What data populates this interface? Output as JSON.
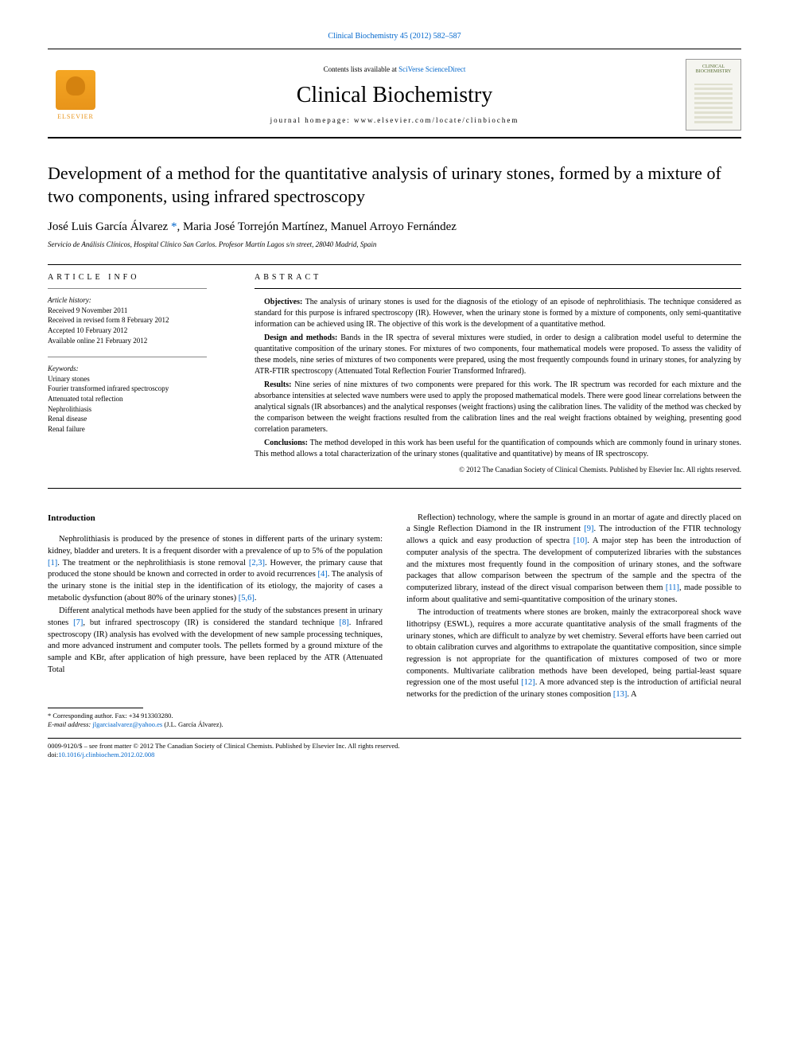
{
  "journal_ref": "Clinical Biochemistry 45 (2012) 582–587",
  "header": {
    "contents_prefix": "Contents lists available at ",
    "contents_link": "SciVerse ScienceDirect",
    "journal_name": "Clinical Biochemistry",
    "homepage_prefix": "journal homepage: ",
    "homepage_url": "www.elsevier.com/locate/clinbiochem",
    "elsevier_label": "ELSEVIER",
    "cover_label": "CLINICAL BIOCHEMISTRY"
  },
  "title": "Development of a method for the quantitative analysis of urinary stones, formed by a mixture of two components, using infrared spectroscopy",
  "authors": {
    "a1": "José Luis García Álvarez ",
    "corr_marker": "*",
    "sep1": ", ",
    "a2": "Maria José Torrejón Martínez",
    "sep2": ", ",
    "a3": "Manuel Arroyo Fernández"
  },
  "affiliation": "Servicio de Análisis Clínicos, Hospital Clínico San Carlos. Profesor Martín Lagos s/n street, 28040 Madrid, Spain",
  "article_info": {
    "heading": "article info",
    "history_label": "Article history:",
    "received": "Received 9 November 2011",
    "revised": "Received in revised form 8 February 2012",
    "accepted": "Accepted 10 February 2012",
    "online": "Available online 21 February 2012",
    "keywords_label": "Keywords:",
    "kw1": "Urinary stones",
    "kw2": "Fourier transformed infrared spectroscopy",
    "kw3": "Attenuated total reflection",
    "kw4": "Nephrolithiasis",
    "kw5": "Renal disease",
    "kw6": "Renal failure"
  },
  "abstract": {
    "heading": "abstract",
    "p1_label": "Objectives:",
    "p1": " The analysis of urinary stones is used for the diagnosis of the etiology of an episode of nephrolithiasis. The technique considered as standard for this purpose is infrared spectroscopy (IR). However, when the urinary stone is formed by a mixture of components, only semi-quantitative information can be achieved using IR. The objective of this work is the development of a quantitative method.",
    "p2_label": "Design and methods:",
    "p2": " Bands in the IR spectra of several mixtures were studied, in order to design a calibration model useful to determine the quantitative composition of the urinary stones. For mixtures of two components, four mathematical models were proposed. To assess the validity of these models, nine series of mixtures of two components were prepared, using the most frequently compounds found in urinary stones, for analyzing by ATR-FTIR spectroscopy (Attenuated Total Reflection Fourier Transformed Infrared).",
    "p3_label": "Results:",
    "p3": " Nine series of nine mixtures of two components were prepared for this work. The IR spectrum was recorded for each mixture and the absorbance intensities at selected wave numbers were used to apply the proposed mathematical models. There were good linear correlations between the analytical signals (IR absorbances) and the analytical responses (weight fractions) using the calibration lines. The validity of the method was checked by the comparison between the weight fractions resulted from the calibration lines and the real weight fractions obtained by weighing, presenting good correlation parameters.",
    "p4_label": "Conclusions:",
    "p4": " The method developed in this work has been useful for the quantification of compounds which are commonly found in urinary stones. This method allows a total characterization of the urinary stones (qualitative and quantitative) by means of IR spectroscopy.",
    "copyright": "© 2012 The Canadian Society of Clinical Chemists. Published by Elsevier Inc. All rights reserved."
  },
  "intro": {
    "heading": "Introduction",
    "col1_p1a": "Nephrolithiasis is produced by the presence of stones in different parts of the urinary system: kidney, bladder and ureters. It is a frequent disorder with a prevalence of up to 5% of the population ",
    "ref1": "[1]",
    "col1_p1b": ". The treatment or the nephrolithiasis is stone removal ",
    "ref23": "[2,3]",
    "col1_p1c": ". However, the primary cause that produced the stone should be known and corrected in order to avoid recurrences ",
    "ref4": "[4]",
    "col1_p1d": ". The analysis of the urinary stone is the initial step in the identification of its etiology, the majority of cases a metabolic dysfunction (about 80% of the urinary stones) ",
    "ref56": "[5,6]",
    "col1_p1e": ".",
    "col1_p2a": "Different analytical methods have been applied for the study of the substances present in urinary stones ",
    "ref7": "[7]",
    "col1_p2b": ", but infrared spectroscopy (IR) is considered the standard technique ",
    "ref8": "[8]",
    "col1_p2c": ". Infrared spectroscopy (IR) analysis has evolved with the development of new sample processing techniques, and more advanced instrument and computer tools. The pellets formed by a ground mixture of the sample and KBr, after application of high pressure, have been replaced by the ATR (Attenuated Total",
    "col2_p1a": "Reflection) technology, where the sample is ground in an mortar of agate and directly placed on a Single Reflection Diamond in the IR instrument ",
    "ref9": "[9]",
    "col2_p1b": ". The introduction of the FTIR technology allows a quick and easy production of spectra ",
    "ref10": "[10]",
    "col2_p1c": ". A major step has been the introduction of computer analysis of the spectra. The development of computerized libraries with the substances and the mixtures most frequently found in the composition of urinary stones, and the software packages that allow comparison between the spectrum of the sample and the spectra of the computerized library, instead of the direct visual comparison between them ",
    "ref11": "[11]",
    "col2_p1d": ", made possible to inform about qualitative and semi-quantitative composition of the urinary stones.",
    "col2_p2a": "The introduction of treatments where stones are broken, mainly the extracorporeal shock wave lithotripsy (ESWL), requires a more accurate quantitative analysis of the small fragments of the urinary stones, which are difficult to analyze by wet chemistry. Several efforts have been carried out to obtain calibration curves and algorithms to extrapolate the quantitative composition, since simple regression is not appropriate for the quantification of mixtures composed of two or more components. Multivariate calibration methods have been developed, being partial-least square regression one of the most useful ",
    "ref12": "[12]",
    "col2_p2b": ". A more advanced step is the introduction of artificial neural networks for the prediction of the urinary stones composition ",
    "ref13": "[13]",
    "col2_p2c": ". A"
  },
  "footnote": {
    "corr_label": "* Corresponding author. Fax: +34 913303280.",
    "email_label": "E-mail address: ",
    "email": "jlgarciaalvarez@yahoo.es",
    "email_suffix": " (J.L. García Álvarez)."
  },
  "footer": {
    "line1": "0009-9120/$ – see front matter © 2012 The Canadian Society of Clinical Chemists. Published by Elsevier Inc. All rights reserved.",
    "doi_label": "doi:",
    "doi": "10.1016/j.clinbiochem.2012.02.008"
  }
}
